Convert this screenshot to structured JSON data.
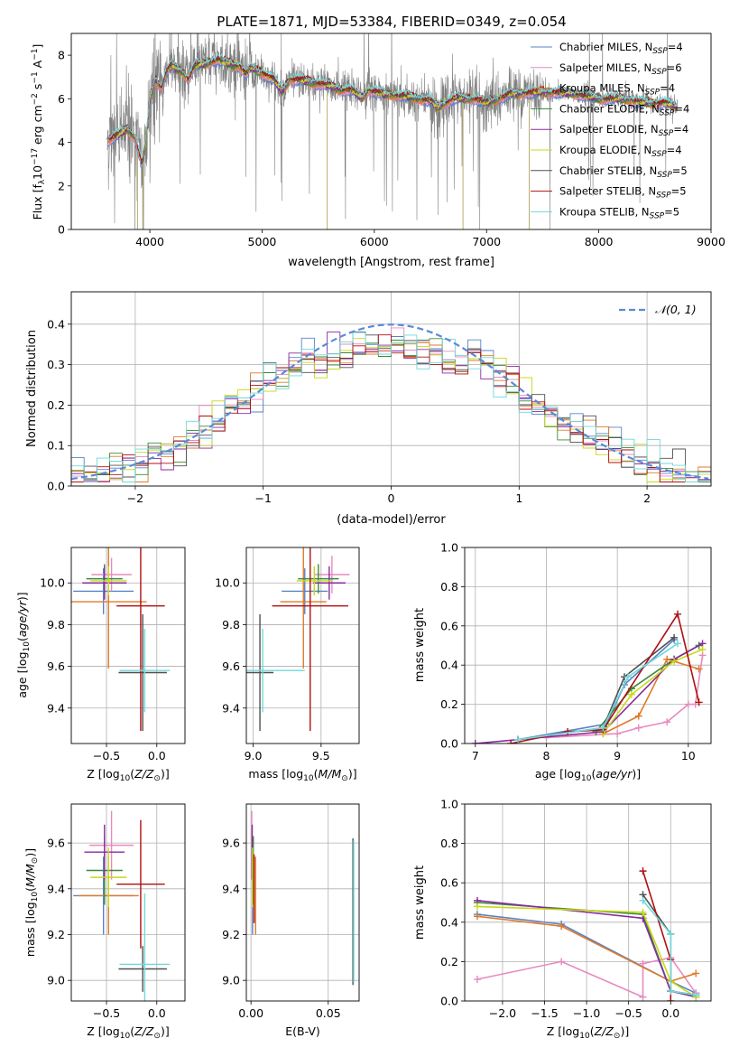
{
  "figure": {
    "title": "PLATE=1871, MJD=53384, FIBERID=0349, z=0.054"
  },
  "colors": {
    "series": [
      "#5a82c8",
      "#e88ac0",
      "#e07a28",
      "#3a8a3a",
      "#8a2aa0",
      "#c8d818",
      "#505050",
      "#b01010",
      "#70d8d8"
    ],
    "data_spectrum": "#808080"
  },
  "series_names": [
    "Chabrier MILES, N_SSP=4",
    "Salpeter MILES, N_SSP=6",
    "Kroupa MILES, N_SSP=4",
    "Chabrier ELODIE, N_SSP=4",
    "Salpeter ELODIE, N_SSP=4",
    "Kroupa ELODIE, N_SSP=4",
    "Chabrier STELIB, N_SSP=5",
    "Salpeter STELIB, N_SSP=5",
    "Kroupa STELIB, N_SSP=5"
  ],
  "chart_data": [
    {
      "id": "spectrum",
      "type": "line",
      "xlabel": "wavelength [Angstrom, rest frame]",
      "ylabel": "Flux [f_λ10^-17 erg cm^-2 s^-1 A^-1]",
      "xlim": [
        3300,
        9000
      ],
      "ylim": [
        0,
        9
      ],
      "xticks": [
        4000,
        5000,
        6000,
        7000,
        8000,
        9000
      ],
      "yticks": [
        0,
        2,
        4,
        6,
        8
      ],
      "legend": "top-right",
      "legend_entries": [
        {
          "main": "Chabrier MILES, N",
          "sub": "SSP",
          "tail": "=4"
        },
        {
          "main": "Salpeter MILES, N",
          "sub": "SSP",
          "tail": "=6"
        },
        {
          "main": "Kroupa MILES, N",
          "sub": "SSP",
          "tail": "=4"
        },
        {
          "main": "Chabrier ELODIE, N",
          "sub": "SSP",
          "tail": "=4"
        },
        {
          "main": "Salpeter ELODIE, N",
          "sub": "SSP",
          "tail": "=4"
        },
        {
          "main": "Kroupa ELODIE, N",
          "sub": "SSP",
          "tail": "=4"
        },
        {
          "main": "Chabrier STELIB, N",
          "sub": "SSP",
          "tail": "=5"
        },
        {
          "main": "Salpeter STELIB, N",
          "sub": "SSP",
          "tail": "=5"
        },
        {
          "main": "Kroupa STELIB, N",
          "sub": "SSP",
          "tail": "=5"
        }
      ],
      "model_continuum": [
        [
          3620,
          4.1
        ],
        [
          3700,
          4.3
        ],
        [
          3800,
          4.6
        ],
        [
          3870,
          4.2
        ],
        [
          3930,
          3.0
        ],
        [
          3965,
          4.0
        ],
        [
          4000,
          6.0
        ],
        [
          4050,
          6.9
        ],
        [
          4102,
          6.5
        ],
        [
          4150,
          7.3
        ],
        [
          4200,
          7.5
        ],
        [
          4300,
          7.2
        ],
        [
          4340,
          6.9
        ],
        [
          4400,
          7.5
        ],
        [
          4500,
          7.6
        ],
        [
          4600,
          7.8
        ],
        [
          4700,
          7.6
        ],
        [
          4800,
          7.5
        ],
        [
          4861,
          7.1
        ],
        [
          4900,
          7.4
        ],
        [
          5000,
          7.2
        ],
        [
          5100,
          6.9
        ],
        [
          5175,
          6.3
        ],
        [
          5250,
          6.9
        ],
        [
          5400,
          6.8
        ],
        [
          5500,
          6.7
        ],
        [
          5600,
          6.6
        ],
        [
          5700,
          6.4
        ],
        [
          5800,
          6.4
        ],
        [
          5890,
          6.0
        ],
        [
          5950,
          6.4
        ],
        [
          6100,
          6.2
        ],
        [
          6300,
          6.1
        ],
        [
          6500,
          5.9
        ],
        [
          6563,
          5.6
        ],
        [
          6700,
          6.0
        ],
        [
          6900,
          6.0
        ],
        [
          7000,
          5.8
        ],
        [
          7200,
          6.2
        ],
        [
          7400,
          6.3
        ],
        [
          7600,
          6.3
        ],
        [
          7800,
          6.2
        ],
        [
          8000,
          6.0
        ],
        [
          8200,
          6.0
        ],
        [
          8400,
          5.8
        ],
        [
          8600,
          5.8
        ],
        [
          8700,
          5.6
        ]
      ],
      "data_range": [
        3620,
        8700
      ]
    },
    {
      "id": "residuals",
      "type": "step",
      "xlabel": "(data-model)/error",
      "ylabel": "Normed distribution",
      "xlim": [
        -2.5,
        2.5
      ],
      "ylim": [
        0,
        0.48
      ],
      "xticks": [
        -2,
        -1,
        0,
        1,
        2
      ],
      "yticks": [
        0.0,
        0.1,
        0.2,
        0.3,
        0.4
      ],
      "legend": "top-right",
      "reference_label": "𝒩(0, 1)",
      "bin_width": 0.1,
      "bin_start": -2.6
    },
    {
      "id": "age-vs-Z",
      "type": "scatter",
      "xlabel": "Z [log10(Z/Z⊙)]",
      "ylabel": "age  [log10(age/yr)]",
      "xlim": [
        -0.85,
        0.28
      ],
      "ylim": [
        9.23,
        10.17
      ],
      "xticks": [
        -0.5,
        0.0
      ],
      "yticks": [
        9.4,
        9.6,
        9.8,
        10.0
      ],
      "points": [
        {
          "x": -0.53,
          "y": 9.96,
          "xerr": 0.3,
          "yerr": 0.11
        },
        {
          "x": -0.45,
          "y": 10.04,
          "xerr": 0.2,
          "yerr": 0.08
        },
        {
          "x": -0.48,
          "y": 9.91,
          "xerr": 0.38,
          "yerr": 0.32
        },
        {
          "x": -0.52,
          "y": 10.02,
          "xerr": 0.18,
          "yerr": 0.07
        },
        {
          "x": -0.52,
          "y": 10.0,
          "xerr": 0.22,
          "yerr": 0.08
        },
        {
          "x": -0.48,
          "y": 10.01,
          "xerr": 0.18,
          "yerr": 0.07
        },
        {
          "x": -0.14,
          "y": 9.57,
          "xerr": 0.24,
          "yerr": 0.28
        },
        {
          "x": -0.16,
          "y": 9.89,
          "xerr": 0.24,
          "yerr": 0.6
        },
        {
          "x": -0.12,
          "y": 9.58,
          "xerr": 0.25,
          "yerr": 0.2
        }
      ]
    },
    {
      "id": "age-vs-mass",
      "type": "scatter",
      "xlabel": "mass [log10(M/M⊙)]",
      "ylabel": "",
      "xlim": [
        8.95,
        9.78
      ],
      "ylim": [
        9.23,
        10.17
      ],
      "xticks": [
        9.0,
        9.5
      ],
      "yticks": [
        9.4,
        9.6,
        9.8,
        10.0
      ],
      "points": [
        {
          "x": 9.38,
          "y": 9.96,
          "xerr": 0.17,
          "yerr": 0.11
        },
        {
          "x": 9.58,
          "y": 10.04,
          "xerr": 0.13,
          "yerr": 0.09
        },
        {
          "x": 9.37,
          "y": 9.91,
          "xerr": 0.17,
          "yerr": 0.32
        },
        {
          "x": 9.48,
          "y": 10.02,
          "xerr": 0.15,
          "yerr": 0.07
        },
        {
          "x": 9.56,
          "y": 10.0,
          "xerr": 0.12,
          "yerr": 0.08
        },
        {
          "x": 9.45,
          "y": 10.01,
          "xerr": 0.13,
          "yerr": 0.07
        },
        {
          "x": 9.05,
          "y": 9.57,
          "xerr": 0.1,
          "yerr": 0.28
        },
        {
          "x": 9.42,
          "y": 9.89,
          "xerr": 0.28,
          "yerr": 0.6
        },
        {
          "x": 9.07,
          "y": 9.58,
          "xerr": 0.31,
          "yerr": 0.2
        }
      ]
    },
    {
      "id": "mass-weight-vs-age",
      "type": "line",
      "xlabel": "age  [log10(age/yr)]",
      "ylabel": "mass weight",
      "xlim": [
        6.85,
        10.32
      ],
      "ylim": [
        0,
        1
      ],
      "xticks": [
        7,
        8,
        9,
        10
      ],
      "yticks": [
        0.0,
        0.2,
        0.4,
        0.6,
        0.8,
        1.0
      ],
      "series": [
        {
          "x": [
            7.6,
            8.85,
            9.1,
            9.8
          ],
          "y": [
            0.02,
            0.1,
            0.3,
            0.53
          ]
        },
        {
          "x": [
            8.0,
            9.0,
            9.3,
            9.7,
            10.0,
            10.1,
            10.2
          ],
          "y": [
            0.03,
            0.05,
            0.08,
            0.11,
            0.2,
            0.2,
            0.45
          ]
        },
        {
          "x": [
            8.8,
            9.3,
            9.7,
            10.15
          ],
          "y": [
            0.05,
            0.14,
            0.43,
            0.38
          ]
        },
        {
          "x": [
            8.7,
            9.2,
            9.8,
            10.15
          ],
          "y": [
            0.06,
            0.28,
            0.43,
            0.5
          ]
        },
        {
          "x": [
            7.0,
            8.8,
            9.8,
            10.2
          ],
          "y": [
            0.0,
            0.06,
            0.43,
            0.51
          ]
        },
        {
          "x": [
            8.8,
            9.2,
            9.8,
            10.2
          ],
          "y": [
            0.05,
            0.25,
            0.42,
            0.48
          ]
        },
        {
          "x": [
            7.6,
            8.8,
            9.1,
            9.8
          ],
          "y": [
            0.02,
            0.08,
            0.34,
            0.54
          ]
        },
        {
          "x": [
            7.5,
            8.3,
            8.8,
            9.85,
            10.15
          ],
          "y": [
            0.0,
            0.06,
            0.07,
            0.66,
            0.21
          ]
        },
        {
          "x": [
            7.6,
            8.8,
            9.15,
            9.85
          ],
          "y": [
            0.02,
            0.08,
            0.34,
            0.51
          ]
        }
      ]
    },
    {
      "id": "mass-vs-Z",
      "type": "scatter",
      "xlabel": "Z [log10(Z/Z⊙)]",
      "ylabel": "mass [log10(M/M⊙)]",
      "xlim": [
        -0.85,
        0.28
      ],
      "ylim": [
        8.91,
        9.77
      ],
      "xticks": [
        -0.5,
        0.0
      ],
      "yticks": [
        9.0,
        9.2,
        9.4,
        9.6
      ],
      "points": [
        {
          "x": -0.53,
          "y": 9.37,
          "xerr": 0.3,
          "yerr": 0.17
        },
        {
          "x": -0.45,
          "y": 9.59,
          "xerr": 0.22,
          "yerr": 0.15
        },
        {
          "x": -0.48,
          "y": 9.37,
          "xerr": 0.3,
          "yerr": 0.17
        },
        {
          "x": -0.52,
          "y": 9.48,
          "xerr": 0.18,
          "yerr": 0.15
        },
        {
          "x": -0.52,
          "y": 9.56,
          "xerr": 0.2,
          "yerr": 0.12
        },
        {
          "x": -0.48,
          "y": 9.45,
          "xerr": 0.18,
          "yerr": 0.13
        },
        {
          "x": -0.14,
          "y": 9.05,
          "xerr": 0.24,
          "yerr": 0.1
        },
        {
          "x": -0.16,
          "y": 9.42,
          "xerr": 0.24,
          "yerr": 0.28
        },
        {
          "x": -0.12,
          "y": 9.07,
          "xerr": 0.25,
          "yerr": 0.31
        }
      ]
    },
    {
      "id": "mass-vs-EBV",
      "type": "scatter",
      "xlabel": "E(B-V)",
      "ylabel": "",
      "xlim": [
        -0.003,
        0.07
      ],
      "ylim": [
        8.91,
        9.77
      ],
      "xticks": [
        0.0,
        0.05
      ],
      "yticks": [
        9.0,
        9.2,
        9.4,
        9.6
      ],
      "points": [
        {
          "x": 0.001,
          "y": 9.37,
          "xerr": 0,
          "yerr": 0.17
        },
        {
          "x": 0.0005,
          "y": 9.59,
          "xerr": 0,
          "yerr": 0.15
        },
        {
          "x": 0.003,
          "y": 9.37,
          "xerr": 0,
          "yerr": 0.17
        },
        {
          "x": 0.0015,
          "y": 9.48,
          "xerr": 0,
          "yerr": 0.15
        },
        {
          "x": 0.0008,
          "y": 9.56,
          "xerr": 0,
          "yerr": 0.12
        },
        {
          "x": 0.001,
          "y": 9.45,
          "xerr": 0,
          "yerr": 0.13
        },
        {
          "x": 0.066,
          "y": 9.3,
          "xerr": 0,
          "yerr": 0.32
        },
        {
          "x": 0.002,
          "y": 9.4,
          "xerr": 0,
          "yerr": 0.15
        },
        {
          "x": 0.0665,
          "y": 9.3,
          "xerr": 0,
          "yerr": 0.31
        }
      ]
    },
    {
      "id": "mass-weight-vs-Z",
      "type": "line",
      "xlabel": "Z [log10(Z/Z⊙)]",
      "ylabel": "mass weight",
      "xlim": [
        -2.45,
        0.48
      ],
      "ylim": [
        0,
        1
      ],
      "xticks": [
        -2.0,
        -1.5,
        -1.0,
        -0.5,
        0.0
      ],
      "yticks": [
        0.0,
        0.2,
        0.4,
        0.6,
        0.8,
        1.0
      ],
      "series": [
        {
          "x": [
            -2.3,
            -1.3,
            0.0,
            0.3
          ],
          "y": [
            0.44,
            0.39,
            0.1,
            0.04
          ]
        },
        {
          "x": [
            -2.3,
            -1.3,
            -0.33,
            -0.33,
            0.0,
            0.3
          ],
          "y": [
            0.11,
            0.2,
            0.02,
            0.19,
            0.22,
            0.04
          ]
        },
        {
          "x": [
            -2.3,
            -1.3,
            0.0,
            0.3
          ],
          "y": [
            0.43,
            0.38,
            0.1,
            0.14
          ]
        },
        {
          "x": [
            -2.3,
            -0.33,
            0.0,
            0.3
          ],
          "y": [
            0.5,
            0.44,
            0.05,
            0.03
          ]
        },
        {
          "x": [
            -2.3,
            -0.33,
            0.0,
            0.3
          ],
          "y": [
            0.51,
            0.42,
            0.05,
            0.02
          ]
        },
        {
          "x": [
            -2.3,
            -0.33,
            0.0,
            0.3
          ],
          "y": [
            0.48,
            0.45,
            0.1,
            0.02
          ]
        },
        {
          "x": [
            -0.33,
            0.0,
            0.0,
            0.3
          ],
          "y": [
            0.54,
            0.34,
            0.05,
            0.03
          ]
        },
        {
          "x": [
            -0.33,
            0.0,
            0.0
          ],
          "y": [
            0.66,
            0.21,
            0.0
          ]
        },
        {
          "x": [
            -0.33,
            0.0,
            0.0,
            0.3
          ],
          "y": [
            0.51,
            0.34,
            0.05,
            0.03
          ]
        }
      ]
    }
  ]
}
